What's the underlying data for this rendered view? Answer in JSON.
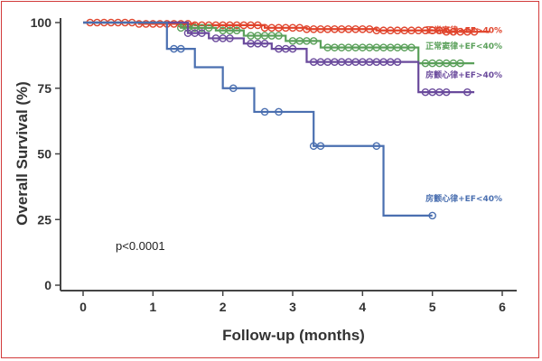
{
  "chart_data": {
    "type": "line",
    "title": "",
    "xlabel": "Follow-up (months)",
    "ylabel": "Overall Survival (%)",
    "xlim": [
      -0.2,
      6.2
    ],
    "ylim": [
      -2,
      102
    ],
    "x_ticks": [
      "0",
      "1",
      "2",
      "3",
      "4",
      "5",
      "6"
    ],
    "y_ticks": [
      "0",
      "25",
      "50",
      "75",
      "100"
    ],
    "annotation": "p<0.0001",
    "grid": false,
    "series": [
      {
        "name": "正常窦律+EF>40%",
        "color": "#e0442c",
        "label_at": [
          6.0,
          96
        ],
        "x": [
          0,
          0.8,
          1.6,
          2.6,
          3.2,
          4.2,
          5.2,
          5.8
        ],
        "y": [
          100,
          99.5,
          99,
          98,
          97.5,
          97,
          96.5,
          96
        ],
        "censors": [
          0.1,
          0.2,
          0.3,
          0.4,
          0.5,
          0.6,
          0.7,
          0.8,
          0.9,
          1.0,
          1.1,
          1.2,
          1.3,
          1.4,
          1.5,
          1.6,
          1.7,
          1.8,
          1.9,
          2.0,
          2.1,
          2.2,
          2.3,
          2.4,
          2.5,
          2.6,
          2.7,
          2.8,
          2.9,
          3.0,
          3.1,
          3.2,
          3.3,
          3.4,
          3.5,
          3.6,
          3.7,
          3.8,
          3.9,
          4.0,
          4.1,
          4.2,
          4.3,
          4.4,
          4.5,
          4.6,
          4.7,
          4.8,
          4.9,
          5.0,
          5.1,
          5.2,
          5.3,
          5.4,
          5.5,
          5.6
        ]
      },
      {
        "name": "正常窦律+EF<40%",
        "color": "#5aa05a",
        "label_at": [
          6.0,
          90
        ],
        "x": [
          0,
          1.4,
          1.9,
          2.3,
          2.9,
          3.4,
          4.8,
          5.6
        ],
        "y": [
          100,
          98,
          97,
          95,
          93,
          90.5,
          84.5,
          84.5
        ],
        "censors": [
          1.4,
          1.5,
          1.6,
          1.7,
          1.8,
          2.0,
          2.1,
          2.2,
          2.4,
          2.5,
          2.6,
          2.7,
          2.8,
          3.0,
          3.1,
          3.2,
          3.3,
          3.5,
          3.6,
          3.7,
          3.8,
          3.9,
          4.0,
          4.1,
          4.2,
          4.3,
          4.4,
          4.5,
          4.6,
          4.7,
          4.9,
          5.0,
          5.1,
          5.2,
          5.3,
          5.4
        ]
      },
      {
        "name": "房颤心律+EF>40%",
        "color": "#6a4a9c",
        "label_at": [
          6.0,
          79
        ],
        "x": [
          0,
          1.5,
          1.8,
          2.3,
          2.7,
          3.2,
          4.8,
          5.6
        ],
        "y": [
          100,
          96,
          94,
          92,
          90,
          85,
          73.5,
          73.5
        ],
        "censors": [
          1.5,
          1.6,
          1.7,
          1.9,
          2.0,
          2.1,
          2.4,
          2.5,
          2.6,
          2.8,
          2.9,
          3.0,
          3.3,
          3.4,
          3.5,
          3.6,
          3.7,
          3.8,
          3.9,
          4.0,
          4.1,
          4.2,
          4.3,
          4.4,
          4.5,
          4.9,
          5.0,
          5.1,
          5.2,
          5.5
        ]
      },
      {
        "name": "房颤心律+EF<40%",
        "color": "#4a6fb0",
        "label_at": [
          6.0,
          32
        ],
        "x": [
          0,
          1.2,
          1.6,
          2.0,
          2.45,
          3.3,
          4.3,
          5.0
        ],
        "y": [
          100,
          90,
          83,
          75,
          66,
          53,
          26.5,
          26.5
        ],
        "censors": [
          1.3,
          1.4,
          2.15,
          2.6,
          2.8,
          3.3,
          3.4,
          4.2,
          5.0
        ]
      }
    ]
  }
}
